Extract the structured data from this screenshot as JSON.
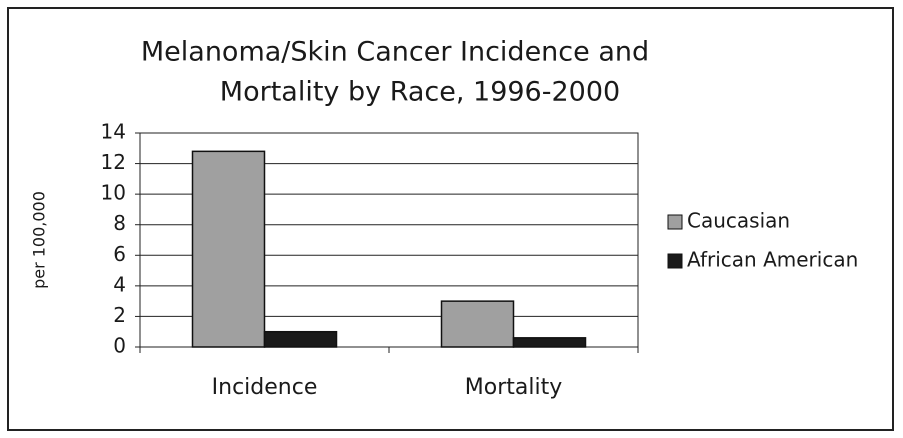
{
  "chart_data": {
    "type": "bar",
    "title": [
      "Melanoma/Skin Cancer Incidence and",
      "Mortality by Race, 1996-2000"
    ],
    "y_label": "per 100,000",
    "categories": [
      "Incidence",
      "Mortality"
    ],
    "series": [
      {
        "name": "Caucasian",
        "color": "#a0a0a0",
        "values": [
          12.8,
          3.0
        ]
      },
      {
        "name": "African American",
        "color": "#1a1a1a",
        "values": [
          1.0,
          0.6
        ]
      }
    ],
    "ylim": [
      0,
      14
    ],
    "yticks": [
      0,
      2,
      4,
      6,
      8,
      10,
      12,
      14
    ],
    "grid": true,
    "legend": "right"
  }
}
